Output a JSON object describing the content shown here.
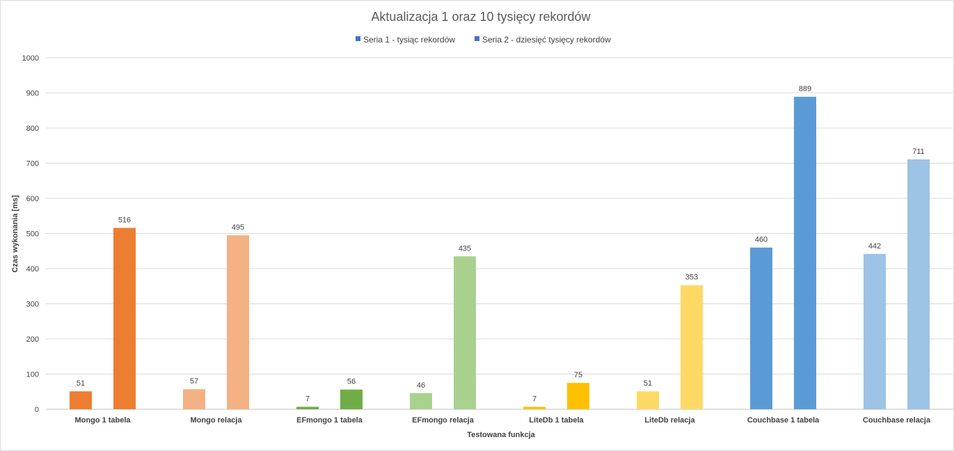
{
  "chart_data": {
    "type": "bar",
    "title": "Aktualizacja 1 oraz 10 tysięcy rekordów",
    "xlabel": "Testowana funkcja",
    "ylabel": "Czas wykonania [ms]",
    "ylim": [
      0,
      1000
    ],
    "yticks": [
      "0",
      "100",
      "200",
      "300",
      "400",
      "500",
      "600",
      "700",
      "800",
      "900",
      "1000"
    ],
    "grid": true,
    "legend_position": "top",
    "categories": [
      "Mongo 1 tabela",
      "Mongo relacja",
      "EFmongo 1 tabela",
      "EFmongo relacja",
      "LiteDb 1 tabela",
      "LiteDb relacja",
      "Couchbase 1 tabela",
      "Couchbase relacja"
    ],
    "series": [
      {
        "name": "Seria 1 - tysiąc rekordów",
        "legend_color": "#4472C4",
        "values": [
          51,
          57,
          7,
          46,
          7,
          51,
          460,
          442
        ]
      },
      {
        "name": "Seria 2 - dziesięć tysięcy rekordów",
        "legend_color": "#4472C4",
        "values": [
          516,
          495,
          56,
          435,
          75,
          353,
          889,
          711
        ]
      }
    ],
    "category_colors": [
      "#ED7D31",
      "#F4B183",
      "#70AD47",
      "#A9D18E",
      "#FFC000",
      "#FFD966",
      "#5B9BD5",
      "#9DC3E6"
    ]
  }
}
